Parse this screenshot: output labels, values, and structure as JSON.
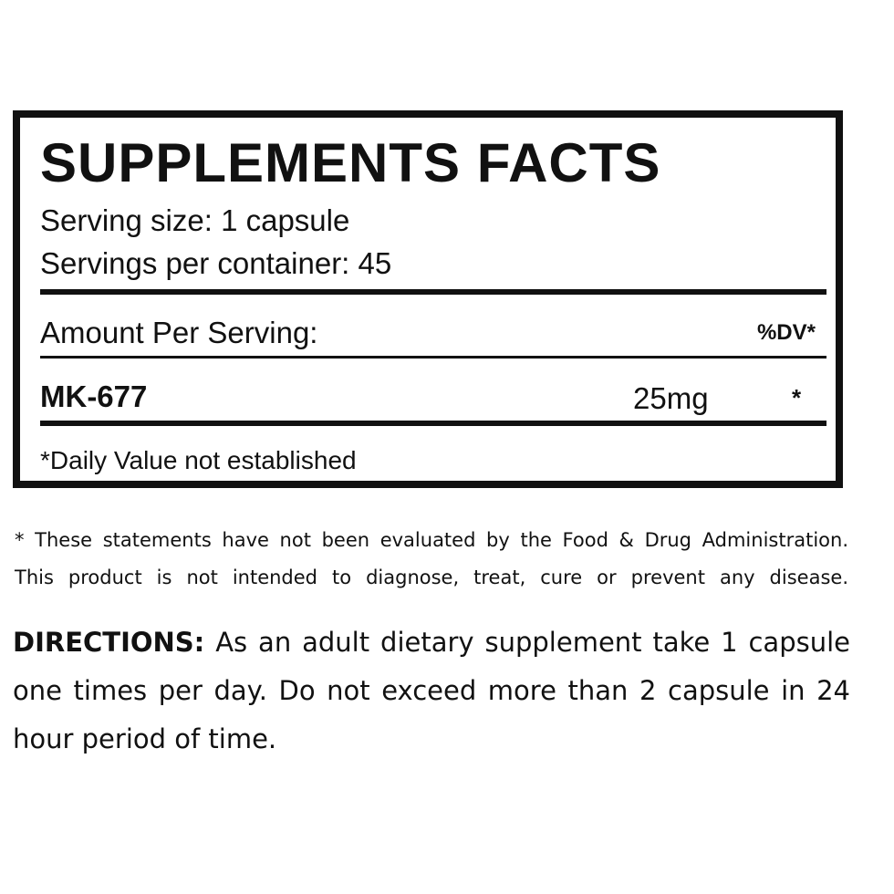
{
  "facts": {
    "title": "SUPPLEMENTS FACTS",
    "serving_size": "Serving size: 1 capsule",
    "servings_per_container": "Servings per container: 45",
    "amount_header": "Amount Per Serving:",
    "dv_header": "%DV*",
    "ingredients": [
      {
        "name": "MK-677",
        "amount": "25mg",
        "dv": "*"
      }
    ],
    "footnote": "*Daily Value not established"
  },
  "disclaimer": {
    "line1": "* These statements have not been evaluated by the Food & Drug Administration.",
    "line2": "This product is not intended to diagnose, treat, cure or prevent any disease."
  },
  "directions": {
    "label": "DIRECTIONS:",
    "text": "As an adult dietary supplement take 1 capsule one times per day. Do not exceed more than 2 capsule in 24 hour period of time."
  }
}
